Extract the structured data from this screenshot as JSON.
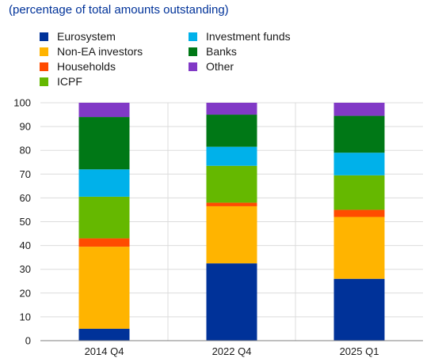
{
  "subtitle": "(percentage of total amounts outstanding)",
  "chart_data": {
    "type": "bar",
    "stacked": true,
    "categories": [
      "2014 Q4",
      "2022 Q4",
      "2025 Q1"
    ],
    "ylim": [
      0,
      100
    ],
    "yticks": [
      0,
      10,
      20,
      30,
      40,
      50,
      60,
      70,
      80,
      90,
      100
    ],
    "grid": true,
    "series": [
      {
        "name": "Eurosystem",
        "color": "#003299",
        "values": [
          5,
          32.5,
          26
        ]
      },
      {
        "name": "Non-EA investors",
        "color": "#ffb400",
        "values": [
          34.5,
          24,
          26
        ]
      },
      {
        "name": "Households",
        "color": "#ff4b00",
        "values": [
          3.5,
          1.5,
          3
        ]
      },
      {
        "name": "ICPF",
        "color": "#65b800",
        "values": [
          17.5,
          15.5,
          14.5
        ]
      },
      {
        "name": "Investment funds",
        "color": "#00b1ea",
        "values": [
          11.5,
          8,
          9.5
        ]
      },
      {
        "name": "Banks",
        "color": "#007816",
        "values": [
          22,
          13.5,
          15.5
        ]
      },
      {
        "name": "Other",
        "color": "#8139c6",
        "values": [
          6,
          5,
          5.5
        ]
      }
    ]
  }
}
